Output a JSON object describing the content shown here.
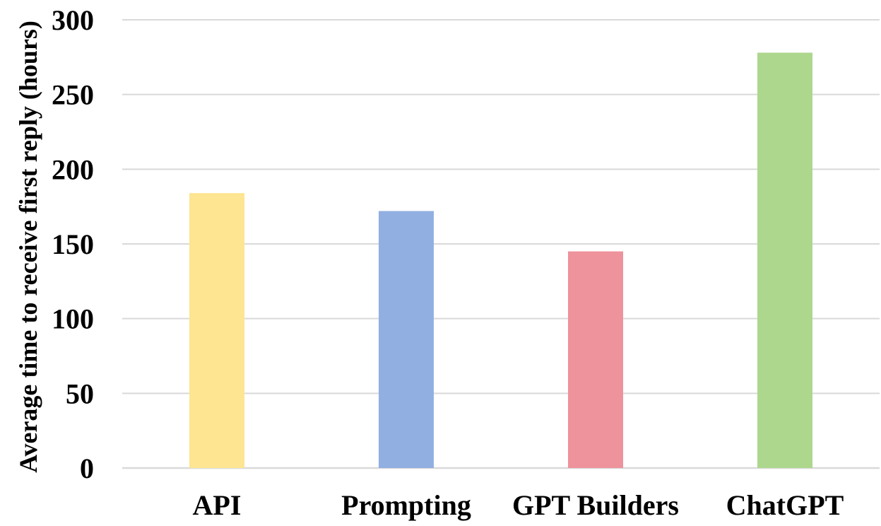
{
  "chart_data": {
    "type": "bar",
    "title": "",
    "xlabel": "",
    "ylabel": "Average time to receive first reply (hours)",
    "categories": [
      "API",
      "Prompting",
      "GPT Builders",
      "ChatGPT"
    ],
    "values": [
      184,
      172,
      145,
      278
    ],
    "colors": [
      "#fde591",
      "#92afe2",
      "#ee929c",
      "#add78d"
    ],
    "ylim": [
      0,
      300
    ],
    "yticks": [
      0,
      50,
      100,
      150,
      200,
      250,
      300
    ],
    "ytick_labels": [
      "0",
      "50",
      "100",
      "150",
      "200",
      "250",
      "300"
    ],
    "grid": true,
    "legend": "none"
  }
}
